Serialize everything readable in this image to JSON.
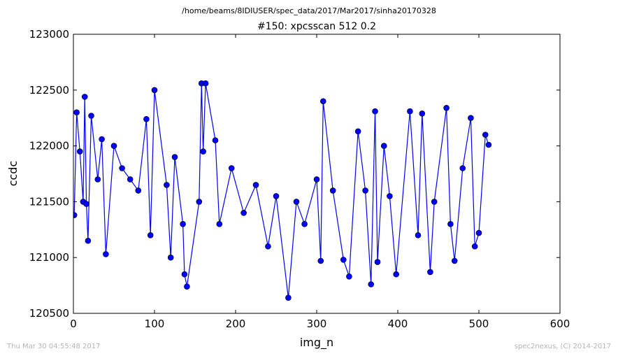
{
  "figure": {
    "supertitle": "/home/beams/8IDIUSER/spec_data/2017/Mar2017/sinha20170328",
    "footer_left": "Thu Mar 30 04:55:48 2017",
    "footer_right": "spec2nexus, (C) 2014-2017"
  },
  "chart_data": {
    "type": "line",
    "title": "#150: xpcsscan 512 0.2",
    "xlabel": "img_n",
    "ylabel": "ccdc",
    "xlim": [
      0,
      600
    ],
    "ylim": [
      120500,
      123000
    ],
    "xticks": [
      "0",
      "100",
      "200",
      "300",
      "400",
      "500",
      "600"
    ],
    "yticks": [
      "120500",
      "121000",
      "121500",
      "122000",
      "122500",
      "123000"
    ],
    "grid": false,
    "marker": "circle",
    "line_color": "#0000ff",
    "marker_color": "#0000ff",
    "series": [
      {
        "x": [
          1,
          4,
          8,
          12,
          14,
          16,
          18,
          22,
          30,
          35,
          40,
          50,
          60,
          70,
          80,
          90,
          95,
          100,
          115,
          120,
          125,
          135,
          137,
          140,
          155,
          158,
          160,
          163,
          175,
          180,
          195,
          210,
          225,
          240,
          250,
          265,
          275,
          285,
          300,
          305,
          308,
          320,
          333,
          340,
          351,
          360,
          367,
          372,
          375,
          383,
          390,
          398,
          415,
          425,
          430,
          440,
          445,
          460,
          465,
          470,
          480,
          490,
          495,
          500,
          508,
          512
        ],
        "y": [
          121380,
          122300,
          121950,
          121500,
          122440,
          121480,
          121150,
          122270,
          121700,
          122060,
          121030,
          122000,
          121800,
          121700,
          121600,
          122240,
          121200,
          122500,
          121650,
          121000,
          121900,
          121300,
          120850,
          120740,
          121500,
          122560,
          121950,
          122560,
          122050,
          121300,
          121800,
          121400,
          121650,
          121100,
          121550,
          120640,
          121500,
          121300,
          121700,
          120970,
          122400,
          121600,
          120980,
          120830,
          122130,
          121600,
          120760,
          122310,
          120960,
          122000,
          121550,
          120850,
          122310,
          121200,
          122290,
          120870,
          121500,
          122340,
          121300,
          120970,
          121800,
          122250,
          121100,
          121220,
          122100,
          122010
        ]
      }
    ]
  }
}
